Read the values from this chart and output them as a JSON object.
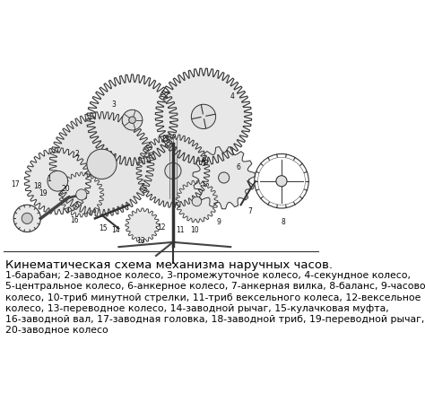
{
  "title": "Кинематическая схема механизма наручных часов.",
  "caption_lines": [
    "1-барабан; 2-заводное колесо, 3-промежуточное колесо, 4-секундное колесо,",
    "5-центральное колесо, 6-анкерное колесо, 7-анкерная вилка, 8-баланс, 9-часовое",
    "колесо, 10-триб минутной стрелки, 11-триб вексельного колеса, 12-вексельное",
    "колесо, 13-переводное колесо, 14-заводной рычаг, 15-кулачковая муфта,",
    "16-заводной вал, 17-заводная головка, 18-заводной триб, 19-переводной рычаг,",
    "20-заводное колесо"
  ],
  "bg_color": "#ffffff",
  "text_color": "#000000",
  "title_fontsize": 9.5,
  "caption_fontsize": 7.8,
  "fig_width": 4.74,
  "fig_height": 4.58,
  "dpi": 100
}
